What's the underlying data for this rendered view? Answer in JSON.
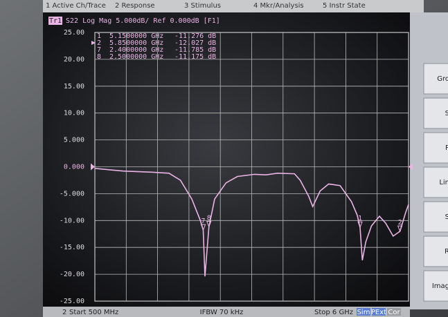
{
  "menu_bar": [
    "1 Active Ch/Trace",
    "2 Response",
    "3 Stimulus",
    "4 Mkr/Analysis",
    "5 Instr State"
  ],
  "chart_data": {
    "type": "line",
    "trace_badge": "Tr1",
    "title": "S22 Log Mag 5.000dB/ Ref 0.000dB [F1]",
    "x": [
      0.5,
      0.8,
      1.0,
      1.5,
      1.8,
      2.0,
      2.2,
      2.35,
      2.4,
      2.43,
      2.5,
      2.6,
      2.8,
      3.0,
      3.3,
      3.5,
      3.7,
      4.0,
      4.1,
      4.25,
      4.32,
      4.45,
      4.6,
      4.8,
      5.0,
      5.1,
      5.15,
      5.19,
      5.25,
      5.35,
      5.49,
      5.6,
      5.73,
      5.85,
      5.95,
      6.0
    ],
    "series": [
      {
        "name": "S22",
        "color": "#eab4e6",
        "values": [
          -0.3,
          -0.6,
          -0.8,
          -1.0,
          -1.2,
          -2.5,
          -6,
          -10,
          -11.8,
          -20.4,
          -11.2,
          -6,
          -3,
          -1.8,
          -1.4,
          -1.5,
          -1.2,
          -1.3,
          -2.5,
          -5.5,
          -7.4,
          -4.5,
          -3.2,
          -3.5,
          -6.5,
          -9,
          -11.3,
          -17.4,
          -14,
          -11,
          -9.2,
          -10.5,
          -12.9,
          -12,
          -8.5,
          -7
        ]
      }
    ],
    "xlim": [
      0.5,
      6
    ],
    "xticks": [
      0.5,
      1.05,
      1.6,
      2.15,
      2.7,
      3.25,
      3.8,
      4.35,
      4.9,
      5.45,
      6.0
    ],
    "ylim": [
      -25,
      25
    ],
    "yticks": [
      {
        "value": 25,
        "label": "25.00"
      },
      {
        "value": 20,
        "label": "20.00"
      },
      {
        "value": 15,
        "label": "15.00"
      },
      {
        "value": 10,
        "label": "10.00"
      },
      {
        "value": 5,
        "label": "5.000"
      },
      {
        "value": 0,
        "label": "0.000"
      },
      {
        "value": -5,
        "label": "-5.000"
      },
      {
        "value": -10,
        "label": "-10.00"
      },
      {
        "value": -15,
        "label": "-15.00"
      },
      {
        "value": -20,
        "label": "-20.00"
      },
      {
        "value": -25,
        "label": "-25.00"
      }
    ],
    "grid": true,
    "markers": [
      {
        "label": "1",
        "x": 5.15,
        "x_label": "5.1500000 GHz",
        "value": -11.276,
        "value_label": "-11.276 dB"
      },
      {
        "label": "2",
        "x": 5.85,
        "x_label": "5.8500000 GHz",
        "value": -12.027,
        "value_label": "-12.027 dB"
      },
      {
        "label": "7",
        "x": 2.4,
        "x_label": "2.4000000 GHz",
        "value": -11.785,
        "value_label": "-11.785 dB"
      },
      {
        "label": "8",
        "x": 2.5,
        "x_label": "2.5000000 GHz",
        "value": -11.175,
        "value_label": "-11.175 dB"
      }
    ]
  },
  "status_bar": {
    "channel": "2",
    "start": "Start 500 MHz",
    "ifbw": "IFBW 70 kHz",
    "stop": "Stop 6 GHz",
    "flags": [
      "Sim",
      "PExt",
      "Cor"
    ]
  },
  "side_menu": [
    "Gro",
    "S",
    "P",
    "Lin",
    "S",
    "R",
    "Imag"
  ]
}
